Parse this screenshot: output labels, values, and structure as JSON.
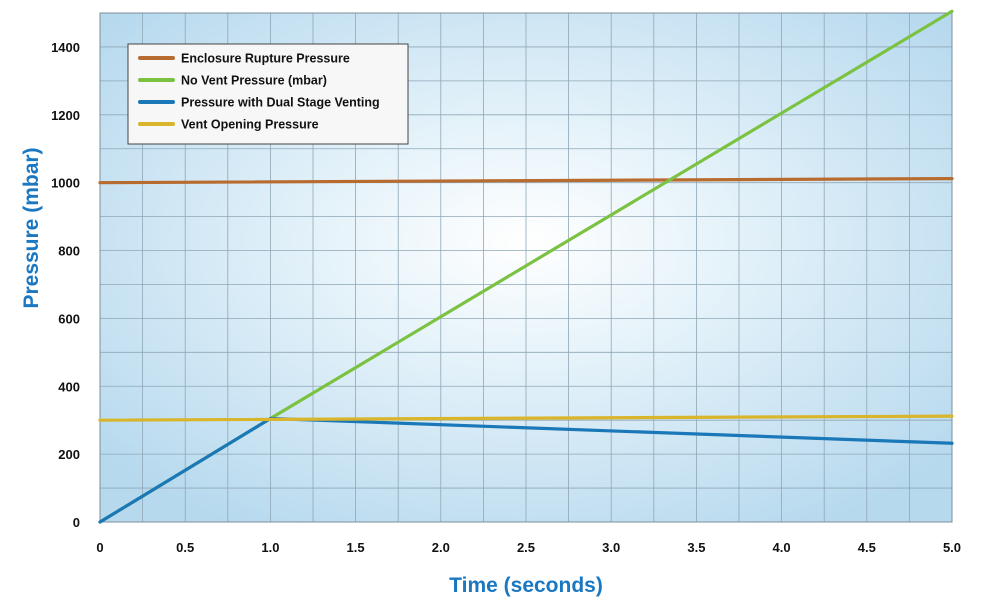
{
  "chart_data": {
    "type": "line",
    "title": "",
    "xlabel": "Time (seconds)",
    "ylabel": "Pressure (mbar)",
    "xlim": [
      0,
      5
    ],
    "ylim": [
      0,
      1500
    ],
    "x_ticks": [
      "0",
      "0.5",
      "1.0",
      "1.5",
      "2.0",
      "2.5",
      "3.0",
      "3.5",
      "4.0",
      "4.5",
      "5.0"
    ],
    "y_ticks": [
      "0",
      "200",
      "400",
      "600",
      "800",
      "1000",
      "1200",
      "1400"
    ],
    "grid": true,
    "legend_position": "top-left",
    "series": [
      {
        "name": "Enclosure Rupture Pressure",
        "color": "#b86b2e",
        "x": [
          0,
          5
        ],
        "y": [
          1000,
          1012
        ]
      },
      {
        "name": "No Vent Pressure (mbar)",
        "color": "#7cc242",
        "x": [
          0,
          1,
          5
        ],
        "y": [
          0,
          305,
          1505
        ]
      },
      {
        "name": "Pressure with Dual Stage Venting",
        "color": "#1a78b8",
        "x": [
          0,
          1,
          5
        ],
        "y": [
          0,
          305,
          232
        ]
      },
      {
        "name": "Vent Opening Pressure",
        "color": "#d9b52b",
        "x": [
          0,
          5
        ],
        "y": [
          300,
          312
        ]
      }
    ]
  },
  "colors": {
    "plot_background_center": "#ffffff",
    "plot_background_edge": "#b7d9ee",
    "grid": "#8fa7b6",
    "axis_title": "#1a78c2"
  }
}
